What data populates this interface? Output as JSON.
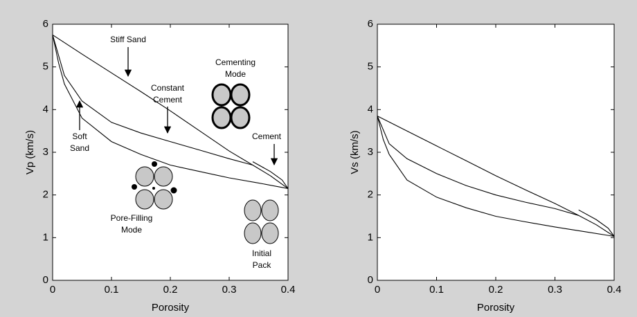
{
  "chart_data": [
    {
      "type": "line",
      "xlabel": "Porosity",
      "ylabel": "Vp (km/s)",
      "xlim": [
        0,
        0.4
      ],
      "ylim": [
        0,
        6
      ],
      "xticks": [
        0,
        0.1,
        0.2,
        0.3,
        0.4
      ],
      "yticks": [
        0,
        1,
        2,
        3,
        4,
        5,
        6
      ],
      "series": [
        {
          "color": "#000000",
          "x": [
            0,
            0.05,
            0.1,
            0.15,
            0.2,
            0.25,
            0.3,
            0.34,
            0.37,
            0.4
          ],
          "values": [
            5.75,
            5.3,
            4.86,
            4.42,
            3.97,
            3.5,
            3.03,
            2.7,
            2.45,
            2.15
          ]
        },
        {
          "color": "#000000",
          "x": [
            0,
            0.02,
            0.05,
            0.1,
            0.15,
            0.2,
            0.25,
            0.3,
            0.34
          ],
          "values": [
            5.75,
            4.8,
            4.2,
            3.7,
            3.45,
            3.25,
            3.05,
            2.85,
            2.7
          ]
        },
        {
          "color": "#000000",
          "x": [
            0,
            0.01,
            0.02,
            0.05,
            0.1,
            0.15,
            0.2,
            0.25,
            0.3,
            0.35,
            0.4
          ],
          "values": [
            5.75,
            5.1,
            4.6,
            3.8,
            3.25,
            2.95,
            2.7,
            2.55,
            2.4,
            2.28,
            2.15
          ]
        },
        {
          "color": "#000000",
          "x": [
            0.34,
            0.37,
            0.39,
            0.4
          ],
          "values": [
            2.78,
            2.55,
            2.35,
            2.15
          ]
        }
      ],
      "annotations": [
        [
          "Stiff Sand"
        ],
        [
          "Constant",
          "Cement"
        ],
        [
          "Cementing",
          "Mode"
        ],
        [
          "Cement"
        ],
        [
          "Soft",
          "Sand"
        ],
        [
          "Pore-Filling",
          "Mode"
        ],
        [
          "Initial",
          "Pack"
        ]
      ]
    },
    {
      "type": "line",
      "xlabel": "Porosity",
      "ylabel": "Vs (km/s)",
      "xlim": [
        0,
        0.4
      ],
      "ylim": [
        0,
        6
      ],
      "xticks": [
        0,
        0.1,
        0.2,
        0.3,
        0.4
      ],
      "yticks": [
        0,
        1,
        2,
        3,
        4,
        5,
        6
      ],
      "series": [
        {
          "color": "#000000",
          "x": [
            0,
            0.05,
            0.1,
            0.15,
            0.2,
            0.25,
            0.3,
            0.34,
            0.37,
            0.4
          ],
          "values": [
            3.85,
            3.5,
            3.15,
            2.8,
            2.45,
            2.12,
            1.8,
            1.52,
            1.3,
            1.03
          ]
        },
        {
          "color": "#000000",
          "x": [
            0,
            0.02,
            0.05,
            0.1,
            0.15,
            0.2,
            0.25,
            0.3,
            0.34
          ],
          "values": [
            3.85,
            3.2,
            2.85,
            2.5,
            2.22,
            2.0,
            1.83,
            1.68,
            1.52
          ]
        },
        {
          "color": "#000000",
          "x": [
            0,
            0.01,
            0.02,
            0.05,
            0.1,
            0.15,
            0.2,
            0.25,
            0.3,
            0.35,
            0.4
          ],
          "values": [
            3.85,
            3.3,
            2.95,
            2.35,
            1.95,
            1.7,
            1.5,
            1.37,
            1.25,
            1.14,
            1.03
          ]
        },
        {
          "color": "#000000",
          "x": [
            0.34,
            0.37,
            0.39,
            0.4
          ],
          "values": [
            1.65,
            1.42,
            1.22,
            1.03
          ]
        }
      ]
    }
  ]
}
